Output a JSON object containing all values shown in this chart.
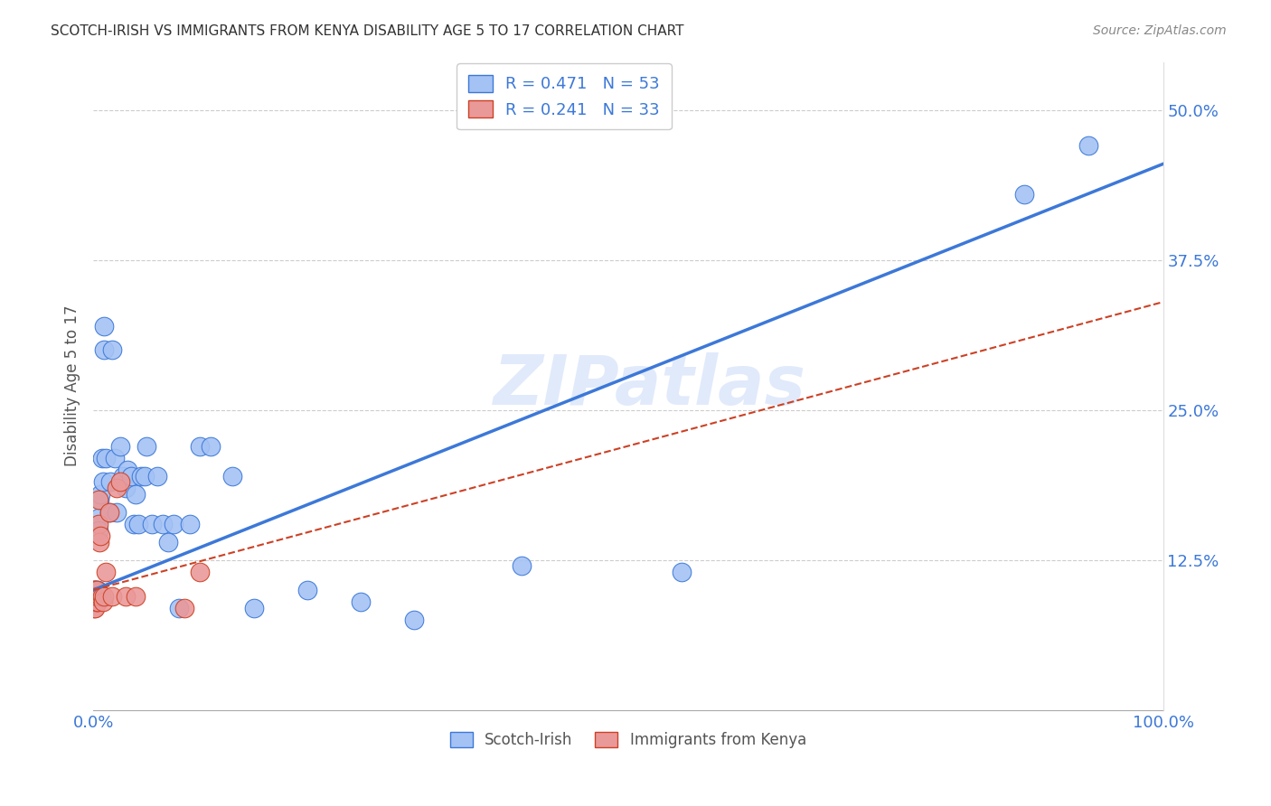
{
  "title": "SCOTCH-IRISH VS IMMIGRANTS FROM KENYA DISABILITY AGE 5 TO 17 CORRELATION CHART",
  "source": "Source: ZipAtlas.com",
  "ylabel": "Disability Age 5 to 17",
  "xlim": [
    0,
    1.0
  ],
  "ylim": [
    0,
    0.54
  ],
  "xtick_labels": [
    "0.0%",
    "100.0%"
  ],
  "xtick_positions": [
    0.0,
    1.0
  ],
  "ytick_labels": [
    "12.5%",
    "25.0%",
    "37.5%",
    "50.0%"
  ],
  "ytick_positions": [
    0.125,
    0.25,
    0.375,
    0.5
  ],
  "blue_color": "#a4c2f4",
  "pink_color": "#ea9999",
  "trendline_blue": "#3c78d8",
  "trendline_pink": "#cc4125",
  "watermark": "ZIPatlas",
  "scotch_irish_x": [
    0.001,
    0.001,
    0.002,
    0.002,
    0.002,
    0.003,
    0.003,
    0.003,
    0.004,
    0.004,
    0.005,
    0.005,
    0.006,
    0.007,
    0.008,
    0.009,
    0.01,
    0.01,
    0.012,
    0.015,
    0.016,
    0.018,
    0.02,
    0.022,
    0.025,
    0.028,
    0.03,
    0.032,
    0.035,
    0.038,
    0.04,
    0.042,
    0.045,
    0.048,
    0.05,
    0.055,
    0.06,
    0.065,
    0.07,
    0.075,
    0.08,
    0.09,
    0.1,
    0.11,
    0.13,
    0.15,
    0.2,
    0.25,
    0.3,
    0.4,
    0.55,
    0.87,
    0.93
  ],
  "scotch_irish_y": [
    0.095,
    0.1,
    0.095,
    0.1,
    0.095,
    0.1,
    0.095,
    0.09,
    0.1,
    0.095,
    0.16,
    0.15,
    0.175,
    0.18,
    0.21,
    0.19,
    0.32,
    0.3,
    0.21,
    0.165,
    0.19,
    0.3,
    0.21,
    0.165,
    0.22,
    0.195,
    0.185,
    0.2,
    0.195,
    0.155,
    0.18,
    0.155,
    0.195,
    0.195,
    0.22,
    0.155,
    0.195,
    0.155,
    0.14,
    0.155,
    0.085,
    0.155,
    0.22,
    0.22,
    0.195,
    0.085,
    0.1,
    0.09,
    0.075,
    0.12,
    0.115,
    0.43,
    0.47
  ],
  "kenya_x": [
    0.001,
    0.001,
    0.001,
    0.001,
    0.001,
    0.002,
    0.002,
    0.002,
    0.002,
    0.002,
    0.002,
    0.003,
    0.003,
    0.003,
    0.004,
    0.004,
    0.005,
    0.005,
    0.006,
    0.007,
    0.007,
    0.008,
    0.009,
    0.01,
    0.012,
    0.015,
    0.018,
    0.022,
    0.025,
    0.03,
    0.04,
    0.085,
    0.1
  ],
  "kenya_y": [
    0.095,
    0.1,
    0.095,
    0.09,
    0.085,
    0.095,
    0.1,
    0.095,
    0.09,
    0.085,
    0.095,
    0.095,
    0.1,
    0.09,
    0.09,
    0.095,
    0.155,
    0.175,
    0.14,
    0.145,
    0.095,
    0.095,
    0.09,
    0.095,
    0.115,
    0.165,
    0.095,
    0.185,
    0.19,
    0.095,
    0.095,
    0.085,
    0.115
  ],
  "blue_trendline_x0": 0.0,
  "blue_trendline_y0": 0.1,
  "blue_trendline_x1": 1.0,
  "blue_trendline_y1": 0.455,
  "pink_trendline_x0": 0.0,
  "pink_trendline_y0": 0.1,
  "pink_trendline_x1": 1.0,
  "pink_trendline_y1": 0.34
}
